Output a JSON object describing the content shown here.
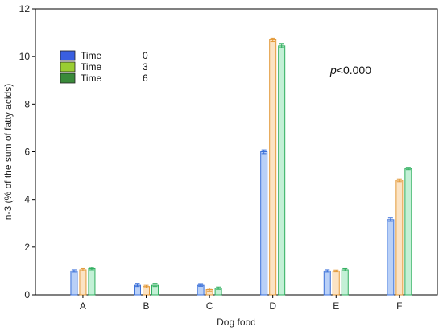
{
  "chart_data": {
    "type": "bar",
    "title": "",
    "xlabel": "Dog food",
    "ylabel": "n-3 (% of the sum of fatty acids)",
    "ylim": [
      0,
      12
    ],
    "yticks": [
      0,
      2,
      4,
      6,
      8,
      10,
      12
    ],
    "categories": [
      "A",
      "B",
      "C",
      "D",
      "E",
      "F"
    ],
    "legend_position": "top-left",
    "series": [
      {
        "name": "Time 0",
        "legend_label": "Time",
        "legend_value": "0",
        "swatch_color": "#3a5fe0",
        "bar_color": "#b9d0f7",
        "edge_color": "#3a6fd8",
        "values": [
          1.0,
          0.4,
          0.4,
          6.0,
          1.0,
          3.15
        ],
        "errors": [
          0.05,
          0.05,
          0.04,
          0.08,
          0.05,
          0.07
        ]
      },
      {
        "name": "Time 3",
        "legend_label": "Time",
        "legend_value": "3",
        "swatch_color": "#9acd32",
        "bar_color": "#fbe3c4",
        "edge_color": "#e39a3a",
        "values": [
          1.05,
          0.35,
          0.22,
          10.7,
          1.0,
          4.8
        ],
        "errors": [
          0.05,
          0.05,
          0.06,
          0.07,
          0.04,
          0.06
        ]
      },
      {
        "name": "Time 6",
        "legend_label": "Time",
        "legend_value": "6",
        "swatch_color": "#3a8a3a",
        "bar_color": "#c3f0d6",
        "edge_color": "#2fae5e",
        "values": [
          1.1,
          0.4,
          0.28,
          10.45,
          1.05,
          5.3
        ],
        "errors": [
          0.05,
          0.05,
          0.05,
          0.07,
          0.05,
          0.05
        ]
      }
    ],
    "annotation": {
      "prefix": "p",
      "suffix": "<0.000"
    },
    "grid": false
  }
}
